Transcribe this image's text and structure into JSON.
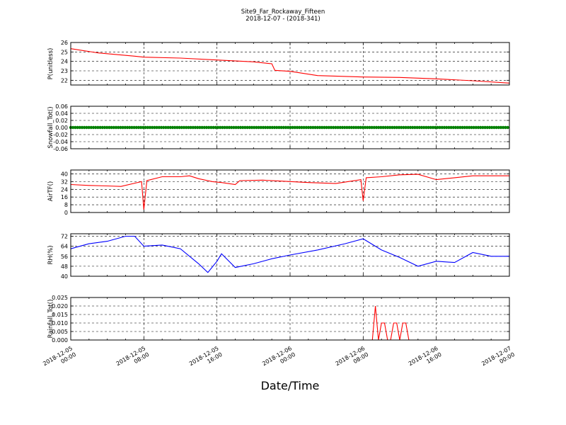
{
  "figure": {
    "title_line1": "Site9_Far_Rockaway_Fifteen",
    "title_line2": "2018-12-07 - (2018-341)",
    "xlabel": "Date/Time"
  },
  "chart_data": [
    {
      "type": "line",
      "ylabel": "P(unitless)",
      "color": "#ff0000",
      "ylim": [
        21.5,
        26
      ],
      "yticks": [
        22,
        23,
        24,
        25,
        26
      ],
      "xlim": [
        "2018-12-05 00:00",
        "2018-12-07 00:00"
      ],
      "grid": true,
      "x": [
        "2018-12-05 00:00",
        "2018-12-05 03:00",
        "2018-12-05 07:00",
        "2018-12-05 08:00",
        "2018-12-05 12:00",
        "2018-12-05 16:00",
        "2018-12-05 20:00",
        "2018-12-05 22:00",
        "2018-12-05 22:20",
        "2018-12-06 00:00",
        "2018-12-06 03:00",
        "2018-12-06 08:00",
        "2018-12-06 12:00",
        "2018-12-06 16:00",
        "2018-12-06 20:00",
        "2018-12-07 00:00"
      ],
      "values": [
        25.35,
        24.9,
        24.55,
        24.45,
        24.35,
        24.15,
        23.95,
        23.75,
        23.05,
        22.95,
        22.5,
        22.35,
        22.3,
        22.15,
        21.95,
        21.7
      ]
    },
    {
      "type": "scatter",
      "ylabel": "Snowfall_Tot()",
      "color": "#008000",
      "ylim": [
        -0.06,
        0.06
      ],
      "yticks": [
        -0.06,
        -0.04,
        -0.02,
        0.0,
        0.02,
        0.04,
        0.06
      ],
      "xlim": [
        "2018-12-05 00:00",
        "2018-12-07 00:00"
      ],
      "grid": true,
      "x": [
        "2018-12-05 00:00",
        "2018-12-07 00:00"
      ],
      "values": [
        0.0,
        0.0
      ]
    },
    {
      "type": "line",
      "ylabel": "AirTF()",
      "color": "#ff0000",
      "ylim": [
        0,
        44
      ],
      "yticks": [
        0,
        8,
        16,
        24,
        32,
        40
      ],
      "xlim": [
        "2018-12-05 00:00",
        "2018-12-07 00:00"
      ],
      "grid": true,
      "x": [
        "2018-12-05 00:00",
        "2018-12-05 02:00",
        "2018-12-05 04:00",
        "2018-12-05 05:30",
        "2018-12-05 07:45",
        "2018-12-05 08:00",
        "2018-12-05 08:20",
        "2018-12-05 10:00",
        "2018-12-05 12:00",
        "2018-12-05 13:00",
        "2018-12-05 14:00",
        "2018-12-05 15:30",
        "2018-12-05 16:30",
        "2018-12-05 18:00",
        "2018-12-05 18:30",
        "2018-12-05 21:00",
        "2018-12-06 02:00",
        "2018-12-06 05:00",
        "2018-12-06 07:45",
        "2018-12-06 08:00",
        "2018-12-06 08:20",
        "2018-12-06 10:00",
        "2018-12-06 12:00",
        "2018-12-06 14:00",
        "2018-12-06 16:00",
        "2018-12-06 18:00",
        "2018-12-06 20:00",
        "2018-12-07 00:00"
      ],
      "values": [
        29,
        28,
        27.5,
        27,
        32,
        3,
        33,
        37,
        37,
        38,
        35,
        32,
        31,
        29,
        33,
        33.5,
        31,
        30,
        34,
        12,
        36,
        37,
        39,
        39.5,
        34,
        36,
        38,
        38
      ]
    },
    {
      "type": "line",
      "ylabel": "RH(%)",
      "color": "#0000ff",
      "ylim": [
        40,
        74
      ],
      "yticks": [
        40,
        48,
        56,
        64,
        72
      ],
      "xlim": [
        "2018-12-05 00:00",
        "2018-12-07 00:00"
      ],
      "grid": true,
      "x": [
        "2018-12-05 00:00",
        "2018-12-05 02:00",
        "2018-12-05 04:00",
        "2018-12-05 06:00",
        "2018-12-05 07:00",
        "2018-12-05 08:00",
        "2018-12-05 10:00",
        "2018-12-05 12:00",
        "2018-12-05 14:00",
        "2018-12-05 15:00",
        "2018-12-05 16:00",
        "2018-12-05 16:30",
        "2018-12-05 18:00",
        "2018-12-05 20:00",
        "2018-12-05 22:00",
        "2018-12-06 00:00",
        "2018-12-06 03:00",
        "2018-12-06 06:00",
        "2018-12-06 08:00",
        "2018-12-06 10:00",
        "2018-12-06 12:00",
        "2018-12-06 14:00",
        "2018-12-06 16:00",
        "2018-12-06 18:00",
        "2018-12-06 20:00",
        "2018-12-06 22:00",
        "2018-12-07 00:00"
      ],
      "values": [
        62,
        66,
        68,
        72,
        72,
        64,
        65,
        62,
        50,
        43,
        52,
        58,
        47,
        50,
        54,
        57,
        61,
        66,
        70,
        61,
        55,
        48,
        52,
        51,
        59,
        56,
        56
      ]
    },
    {
      "type": "line",
      "ylabel": "Rainfall_Tot()",
      "color": "#ff0000",
      "ylim": [
        0,
        0.025
      ],
      "yticks": [
        0.0,
        0.005,
        0.01,
        0.015,
        0.02,
        0.025
      ],
      "xlim": [
        "2018-12-05 00:00",
        "2018-12-07 00:00"
      ],
      "grid": true,
      "x": [
        "2018-12-05 00:00",
        "2018-12-06 09:00",
        "2018-12-06 09:20",
        "2018-12-06 09:40",
        "2018-12-06 10:00",
        "2018-12-06 10:20",
        "2018-12-06 10:40",
        "2018-12-06 11:00",
        "2018-12-06 11:20",
        "2018-12-06 11:40",
        "2018-12-06 12:00",
        "2018-12-06 12:20",
        "2018-12-06 12:40",
        "2018-12-06 13:00",
        "2018-12-07 00:00"
      ],
      "values": [
        0,
        0,
        0.02,
        0,
        0.01,
        0.01,
        0,
        0,
        0.01,
        0.01,
        0,
        0.01,
        0.01,
        0,
        0
      ]
    }
  ],
  "xticks": {
    "labels": [
      [
        "2018-12-05",
        "00:00"
      ],
      [
        "2018-12-05",
        "08:00"
      ],
      [
        "2018-12-05",
        "16:00"
      ],
      [
        "2018-12-06",
        "00:00"
      ],
      [
        "2018-12-06",
        "08:00"
      ],
      [
        "2018-12-06",
        "16:00"
      ],
      [
        "2018-12-07",
        "00:00"
      ]
    ],
    "values": [
      "2018-12-05 00:00",
      "2018-12-05 08:00",
      "2018-12-05 16:00",
      "2018-12-06 00:00",
      "2018-12-06 08:00",
      "2018-12-06 16:00",
      "2018-12-07 00:00"
    ]
  }
}
